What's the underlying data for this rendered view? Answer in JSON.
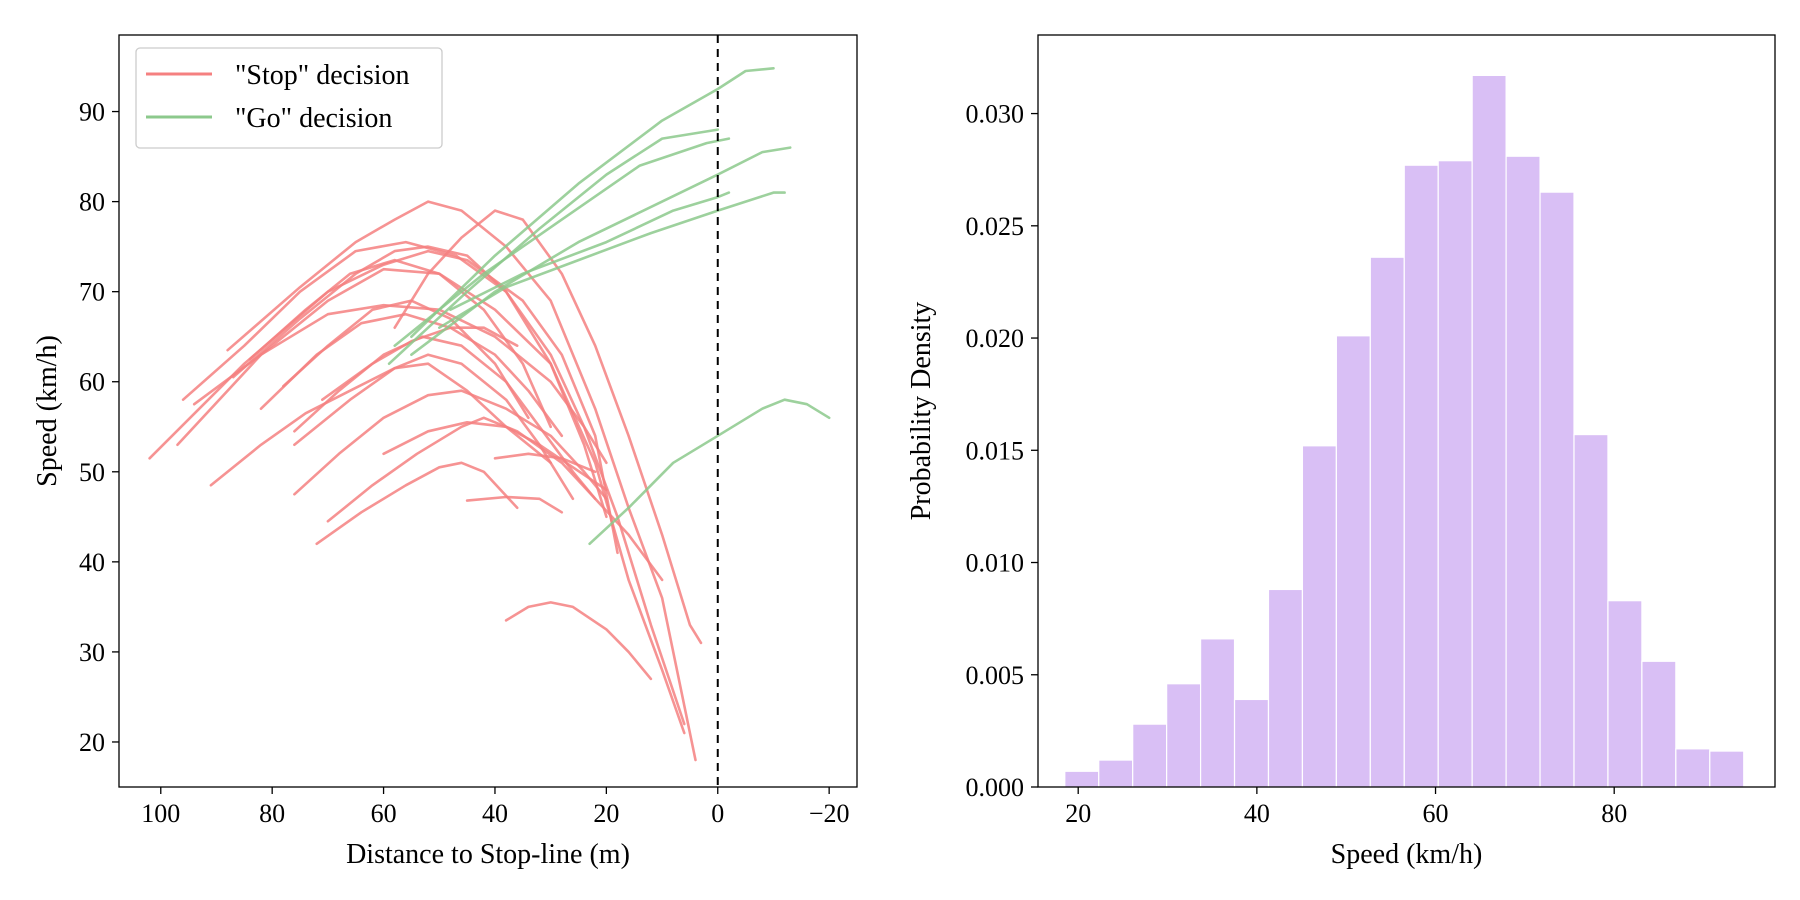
{
  "chart_data": [
    {
      "type": "line",
      "xlabel": "Distance to Stop-line (m)",
      "ylabel": "Speed (km/h)",
      "xlim": [
        107.5,
        -25
      ],
      "ylim": [
        15,
        98.5
      ],
      "xticks": [
        100,
        80,
        60,
        40,
        20,
        0,
        -20
      ],
      "xtick_labels": [
        "100",
        "80",
        "60",
        "40",
        "20",
        "0",
        "−20"
      ],
      "yticks": [
        20,
        30,
        40,
        50,
        60,
        70,
        80,
        90
      ],
      "ytick_labels": [
        "20",
        "30",
        "40",
        "50",
        "60",
        "70",
        "80",
        "90"
      ],
      "reference_line": {
        "x": 0,
        "style": "dashed"
      },
      "legend": [
        {
          "label": "\"Stop\" decision",
          "color": "#f58080"
        },
        {
          "label": "\"Go\" decision",
          "color": "#8cc98c"
        }
      ],
      "series": [
        {
          "name": "Stop",
          "color": "#f58080",
          "points": [
            [
              102,
              51.5
            ],
            [
              85,
              62
            ],
            [
              70,
              70
            ],
            [
              60,
              73
            ],
            [
              52,
              74.5
            ],
            [
              45,
              73.5
            ],
            [
              35,
              69
            ],
            [
              28,
              63
            ],
            [
              22,
              54
            ],
            [
              18,
              41
            ]
          ]
        },
        {
          "name": "Stop",
          "color": "#f58080",
          "points": [
            [
              97,
              53
            ],
            [
              82,
              63
            ],
            [
              70,
              69
            ],
            [
              60,
              72.5
            ],
            [
              50,
              72
            ],
            [
              40,
              68
            ],
            [
              30,
              62
            ],
            [
              22,
              51
            ],
            [
              16,
              38
            ],
            [
              10,
              28
            ],
            [
              6,
              21
            ]
          ]
        },
        {
          "name": "Stop",
          "color": "#f58080",
          "points": [
            [
              96,
              58
            ],
            [
              85,
              64
            ],
            [
              75,
              70
            ],
            [
              65,
              74.5
            ],
            [
              56,
              75.5
            ],
            [
              47,
              74
            ],
            [
              38,
              70
            ],
            [
              30,
              63
            ],
            [
              24,
              55
            ],
            [
              18,
              45
            ],
            [
              12,
              33
            ],
            [
              6,
              22
            ]
          ]
        },
        {
          "name": "Stop",
          "color": "#f58080",
          "points": [
            [
              94,
              57.5
            ],
            [
              82,
              63
            ],
            [
              70,
              67.5
            ],
            [
              60,
              68.5
            ],
            [
              50,
              68
            ],
            [
              40,
              65
            ],
            [
              30,
              60
            ],
            [
              24,
              55
            ],
            [
              20,
              51
            ]
          ]
        },
        {
          "name": "Stop",
          "color": "#f58080",
          "points": [
            [
              88,
              63.5
            ],
            [
              75,
              70.5
            ],
            [
              65,
              75.5
            ],
            [
              58,
              78
            ],
            [
              52,
              80
            ],
            [
              46,
              79
            ],
            [
              38,
              75
            ],
            [
              30,
              69
            ],
            [
              22,
              57
            ],
            [
              16,
              46
            ],
            [
              10,
              36
            ],
            [
              4,
              18
            ]
          ]
        },
        {
          "name": "Stop",
          "color": "#f58080",
          "points": [
            [
              87,
              60.5
            ],
            [
              75,
              67
            ],
            [
              65,
              72
            ],
            [
              58,
              74.5
            ],
            [
              52,
              75
            ],
            [
              45,
              74
            ],
            [
              38,
              70
            ],
            [
              30,
              62
            ],
            [
              24,
              53
            ],
            [
              20,
              45
            ]
          ]
        },
        {
          "name": "Stop",
          "color": "#f58080",
          "points": [
            [
              84,
              62.5
            ],
            [
              74,
              68
            ],
            [
              66,
              72
            ],
            [
              58,
              73.5
            ],
            [
              50,
              72
            ],
            [
              42,
              68
            ],
            [
              35,
              62
            ],
            [
              30,
              55
            ]
          ]
        },
        {
          "name": "Stop",
          "color": "#f58080",
          "points": [
            [
              82,
              57
            ],
            [
              72,
              63
            ],
            [
              64,
              66.5
            ],
            [
              56,
              67.5
            ],
            [
              48,
              66
            ],
            [
              40,
              63
            ],
            [
              34,
              59
            ],
            [
              28,
              54
            ]
          ]
        },
        {
          "name": "Stop",
          "color": "#f58080",
          "points": [
            [
              78,
              59.5
            ],
            [
              70,
              64
            ],
            [
              62,
              68
            ],
            [
              55,
              69
            ],
            [
              48,
              67
            ],
            [
              40,
              62
            ],
            [
              34,
              56
            ]
          ]
        },
        {
          "name": "Stop",
          "color": "#f58080",
          "points": [
            [
              76,
              53
            ],
            [
              66,
              58
            ],
            [
              58,
              61.5
            ],
            [
              52,
              63
            ],
            [
              46,
              62
            ],
            [
              38,
              58
            ],
            [
              32,
              53
            ],
            [
              26,
              47
            ]
          ]
        },
        {
          "name": "Stop",
          "color": "#f58080",
          "points": [
            [
              76,
              54.5
            ],
            [
              68,
              59
            ],
            [
              60,
              63
            ],
            [
              53,
              65
            ],
            [
              46,
              64
            ],
            [
              38,
              60
            ],
            [
              32,
              55
            ],
            [
              26,
              50
            ],
            [
              22,
              47
            ]
          ]
        },
        {
          "name": "Stop",
          "color": "#f58080",
          "points": [
            [
              91,
              48.5
            ],
            [
              82,
              53
            ],
            [
              74,
              56.5
            ],
            [
              66,
              59
            ],
            [
              58,
              61.5
            ],
            [
              52,
              62
            ],
            [
              45,
              59
            ],
            [
              38,
              55
            ],
            [
              30,
              51
            ]
          ]
        },
        {
          "name": "Stop",
          "color": "#f58080",
          "points": [
            [
              71,
              58
            ],
            [
              62,
              62
            ],
            [
              55,
              64.5
            ],
            [
              48,
              66
            ],
            [
              42,
              66
            ],
            [
              36,
              64
            ]
          ]
        },
        {
          "name": "Stop",
          "color": "#f58080",
          "points": [
            [
              76,
              47.5
            ],
            [
              68,
              52
            ],
            [
              60,
              56
            ],
            [
              52,
              58.5
            ],
            [
              46,
              59
            ],
            [
              38,
              57
            ],
            [
              30,
              54
            ],
            [
              24,
              50
            ],
            [
              20,
              47
            ]
          ]
        },
        {
          "name": "Stop",
          "color": "#f58080",
          "points": [
            [
              72,
              42
            ],
            [
              64,
              45.5
            ],
            [
              56,
              48.5
            ],
            [
              50,
              50.5
            ],
            [
              46,
              51
            ],
            [
              42,
              50
            ],
            [
              36,
              46
            ]
          ]
        },
        {
          "name": "Stop",
          "color": "#f58080",
          "points": [
            [
              70,
              44.5
            ],
            [
              62,
              48.5
            ],
            [
              54,
              52
            ],
            [
              46,
              55
            ],
            [
              42,
              56
            ],
            [
              36,
              54.5
            ],
            [
              28,
              51
            ],
            [
              22,
              47
            ],
            [
              16,
              43
            ],
            [
              10,
              38
            ]
          ]
        },
        {
          "name": "Stop",
          "color": "#f58080",
          "points": [
            [
              60,
              52
            ],
            [
              52,
              54.5
            ],
            [
              45,
              55.5
            ],
            [
              38,
              55
            ],
            [
              32,
              53
            ],
            [
              26,
              50.5
            ],
            [
              20,
              48
            ]
          ]
        },
        {
          "name": "Stop",
          "color": "#f58080",
          "points": [
            [
              45,
              46.8
            ],
            [
              38,
              47.2
            ],
            [
              32,
              47
            ],
            [
              28,
              45.5
            ]
          ]
        },
        {
          "name": "Stop",
          "color": "#f58080",
          "points": [
            [
              40,
              51.5
            ],
            [
              34,
              52
            ],
            [
              28,
              51.5
            ],
            [
              22,
              50
            ]
          ]
        },
        {
          "name": "Stop",
          "color": "#f58080",
          "points": [
            [
              38,
              33.5
            ],
            [
              34,
              35
            ],
            [
              30,
              35.5
            ],
            [
              26,
              35
            ],
            [
              20,
              32.5
            ],
            [
              16,
              30
            ],
            [
              12,
              27
            ]
          ]
        },
        {
          "name": "Stop",
          "color": "#f58080",
          "points": [
            [
              58,
              66
            ],
            [
              52,
              72
            ],
            [
              46,
              76
            ],
            [
              40,
              79
            ],
            [
              35,
              78
            ],
            [
              28,
              72
            ],
            [
              22,
              64
            ],
            [
              16,
              54
            ],
            [
              10,
              43
            ],
            [
              5,
              33
            ],
            [
              3,
              31
            ]
          ]
        },
        {
          "name": "Go",
          "color": "#8cc98c",
          "points": [
            [
              59,
              62
            ],
            [
              45,
              70
            ],
            [
              32,
              77
            ],
            [
              20,
              83
            ],
            [
              10,
              87
            ],
            [
              0,
              88
            ]
          ]
        },
        {
          "name": "Go",
          "color": "#8cc98c",
          "points": [
            [
              55,
              65
            ],
            [
              40,
              74
            ],
            [
              25,
              82
            ],
            [
              10,
              89
            ],
            [
              0,
              92.5
            ],
            [
              -5,
              94.5
            ],
            [
              -10,
              94.8
            ]
          ]
        },
        {
          "name": "Go",
          "color": "#8cc98c",
          "points": [
            [
              58,
              64
            ],
            [
              42,
              72
            ],
            [
              28,
              78
            ],
            [
              14,
              84
            ],
            [
              2,
              86.5
            ],
            [
              -2,
              87
            ]
          ]
        },
        {
          "name": "Go",
          "color": "#8cc98c",
          "points": [
            [
              55,
              63
            ],
            [
              40,
              70
            ],
            [
              25,
              75.5
            ],
            [
              10,
              80
            ],
            [
              0,
              83
            ],
            [
              -8,
              85.5
            ],
            [
              -13,
              86
            ]
          ]
        },
        {
          "name": "Go",
          "color": "#8cc98c",
          "points": [
            [
              50,
              66
            ],
            [
              38,
              70.5
            ],
            [
              25,
              73.5
            ],
            [
              12,
              76.5
            ],
            [
              0,
              79
            ],
            [
              -10,
              81
            ],
            [
              -12,
              81
            ]
          ]
        },
        {
          "name": "Go",
          "color": "#8cc98c",
          "points": [
            [
              48,
              68
            ],
            [
              35,
              72
            ],
            [
              20,
              75.5
            ],
            [
              8,
              79
            ],
            [
              0,
              80.5
            ],
            [
              -2,
              81
            ]
          ]
        },
        {
          "name": "Go",
          "color": "#8cc98c",
          "points": [
            [
              23,
              42
            ],
            [
              16,
              46
            ],
            [
              8,
              51
            ],
            [
              0,
              54
            ],
            [
              -8,
              57
            ],
            [
              -12,
              58
            ],
            [
              -16,
              57.5
            ],
            [
              -20,
              56
            ]
          ]
        }
      ]
    },
    {
      "type": "bar",
      "xlabel": "Speed (km/h)",
      "ylabel": "Probability Density",
      "xlim": [
        15.5,
        98
      ],
      "ylim": [
        0,
        0.0335
      ],
      "xticks": [
        20,
        40,
        60,
        80
      ],
      "xtick_labels": [
        "20",
        "40",
        "60",
        "80"
      ],
      "yticks": [
        0,
        0.005,
        0.01,
        0.015,
        0.02,
        0.025,
        0.03
      ],
      "ytick_labels": [
        "0.000",
        "0.005",
        "0.010",
        "0.015",
        "0.020",
        "0.025",
        "0.030"
      ],
      "color": "#d9bff5",
      "bin_edges": [
        18.5,
        22.3,
        26.1,
        29.9,
        33.7,
        37.5,
        41.3,
        45.1,
        48.9,
        52.7,
        56.5,
        60.3,
        64.1,
        67.9,
        71.7,
        75.5,
        79.3,
        83.1,
        86.9,
        90.7,
        94.5
      ],
      "values": [
        0.0007,
        0.0012,
        0.0028,
        0.0046,
        0.0066,
        0.0039,
        0.0088,
        0.0152,
        0.0201,
        0.0236,
        0.0277,
        0.0279,
        0.0317,
        0.0281,
        0.0265,
        0.0157,
        0.0083,
        0.0056,
        0.0017,
        0.0016
      ]
    }
  ]
}
